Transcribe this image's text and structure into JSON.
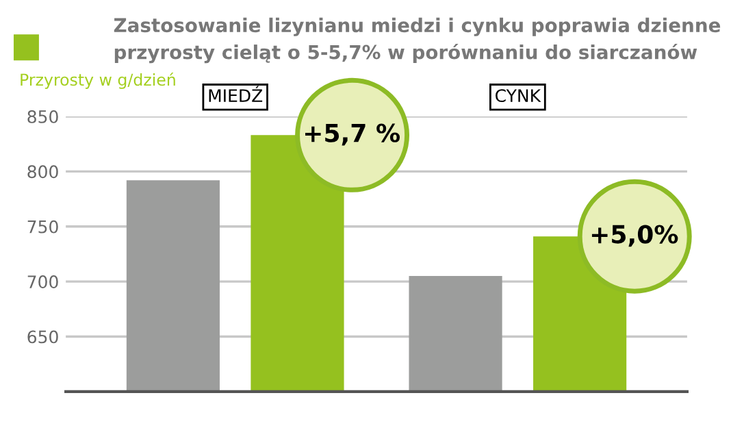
{
  "chart_data": {
    "type": "bar",
    "title": "Zastosowanie lizynianu miedzi i cynku poprawia dzienne\nprzyrosty cieląt o 5-5,7% w porównaniu do siarczanów",
    "ylabel": "Przyrosty w g/dzień",
    "categories": [
      "MIEDŹ",
      "CYNK"
    ],
    "series": [
      {
        "color": "#9c9d9c",
        "values": [
          792,
          705
        ]
      },
      {
        "color": "#95c11f",
        "values": [
          833,
          741
        ]
      }
    ],
    "annotations": [
      "+5,7 %",
      "+5,0%"
    ],
    "ylim": [
      600,
      850
    ],
    "yticks": [
      650,
      700,
      750,
      800,
      850
    ],
    "grid": "y"
  }
}
